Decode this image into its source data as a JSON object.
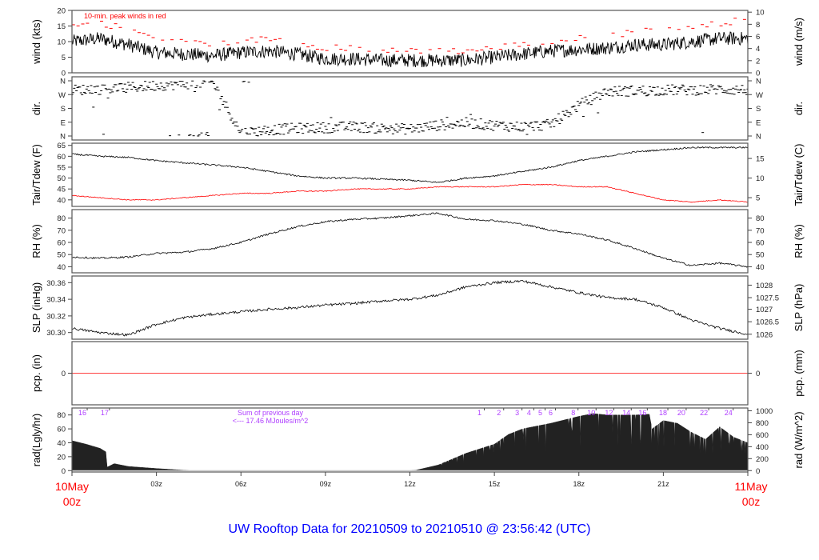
{
  "title": "UW Rooftop Data for 20210509  to  20210510 @ 23:56:42  (UTC)",
  "colors": {
    "title": "#0000ff",
    "peak": "#ff0000",
    "dewpoint": "#ff0000",
    "precip": "#ff0000",
    "date_label": "#ff0000",
    "rad_annotation": "#b040ff",
    "series": "#000000"
  },
  "x_axis": {
    "ticks": [
      {
        "hour": 3,
        "label": "03z"
      },
      {
        "hour": 6,
        "label": "06z"
      },
      {
        "hour": 9,
        "label": "09z"
      },
      {
        "hour": 12,
        "label": "12z"
      },
      {
        "hour": 15,
        "label": "15z"
      },
      {
        "hour": 18,
        "label": "18z"
      },
      {
        "hour": 21,
        "label": "21z"
      }
    ],
    "start_label": [
      "10May",
      "00z"
    ],
    "end_label": [
      "11May",
      "00z"
    ],
    "range_hours": [
      0,
      24
    ]
  },
  "chart_data": [
    {
      "type": "line",
      "id": "wind",
      "ylabel": "wind (kts)",
      "ylabel_right": "wind (m/s)",
      "ylim": [
        0,
        20
      ],
      "yticks": [
        0,
        5,
        10,
        15,
        20
      ],
      "yticks_right": [
        {
          "v": 0,
          "l": "0"
        },
        {
          "v": 3.89,
          "l": "2"
        },
        {
          "v": 7.78,
          "l": "4"
        },
        {
          "v": 11.66,
          "l": "6"
        },
        {
          "v": 15.55,
          "l": "8"
        },
        {
          "v": 19.44,
          "l": "10"
        }
      ],
      "annotation": "10-min. peak winds in red",
      "hours": [
        0,
        1,
        2,
        3,
        4,
        5,
        6,
        7,
        8,
        9,
        10,
        11,
        12,
        13,
        14,
        15,
        16,
        17,
        18,
        19,
        20,
        21,
        22,
        23,
        24
      ],
      "series": [
        {
          "values": [
            10,
            11,
            9,
            6.5,
            6,
            5.5,
            6.5,
            7,
            6,
            4.5,
            4.5,
            4,
            4,
            4,
            4,
            5,
            6,
            7,
            7.5,
            8,
            9,
            9,
            10,
            11,
            11
          ]
        },
        {
          "style": "peak",
          "values": [
            15,
            16,
            14,
            11,
            10,
            9,
            10,
            11,
            10,
            8,
            8,
            7,
            7,
            7,
            7,
            8,
            9,
            10,
            11,
            12,
            13,
            14,
            15,
            16,
            17
          ]
        }
      ]
    },
    {
      "type": "scatter",
      "id": "dir",
      "ylabel": "dir.",
      "ylim": [
        0,
        360
      ],
      "yticks": [
        {
          "v": 0,
          "l": "N"
        },
        {
          "v": 90,
          "l": "E"
        },
        {
          "v": 180,
          "l": "S"
        },
        {
          "v": 270,
          "l": "W"
        },
        {
          "v": 360,
          "l": "N"
        }
      ],
      "hours": [
        0,
        1,
        2,
        3,
        4,
        5,
        6,
        7,
        8,
        9,
        10,
        11,
        12,
        13,
        14,
        15,
        16,
        17,
        18,
        19,
        20,
        21,
        22,
        23,
        24
      ],
      "values": [
        300,
        305,
        315,
        330,
        340,
        350,
        20,
        40,
        50,
        55,
        60,
        50,
        45,
        70,
        85,
        70,
        60,
        75,
        200,
        290,
        295,
        300,
        300,
        305,
        300
      ]
    },
    {
      "type": "line",
      "id": "temp",
      "ylabel": "Tair/Tdew (F)",
      "ylabel_right": "Tair/Tdew (C)",
      "ylim": [
        37,
        66
      ],
      "yticks": [
        40,
        45,
        50,
        55,
        60,
        65
      ],
      "yticks_right": [
        {
          "v": 41,
          "l": "5"
        },
        {
          "v": 50,
          "l": "10"
        },
        {
          "v": 59,
          "l": "15"
        }
      ],
      "hours": [
        0,
        1,
        2,
        3,
        4,
        5,
        6,
        7,
        8,
        9,
        10,
        11,
        12,
        13,
        14,
        15,
        16,
        17,
        18,
        19,
        20,
        21,
        22,
        23,
        24
      ],
      "series": [
        {
          "name": "Tair",
          "values": [
            61,
            60,
            59.5,
            58,
            57,
            56,
            55,
            53,
            51,
            50,
            50,
            49.5,
            49,
            48,
            50,
            51,
            53,
            55,
            58,
            60,
            62,
            63,
            64,
            64,
            64
          ]
        },
        {
          "name": "Tdew",
          "style": "dew",
          "values": [
            42,
            41,
            40,
            40,
            41,
            42,
            43,
            43,
            44,
            44,
            45,
            45,
            45,
            46,
            46,
            46,
            47,
            47,
            46,
            46,
            43,
            40,
            39,
            40,
            39
          ]
        }
      ]
    },
    {
      "type": "line",
      "id": "rh",
      "ylabel": "RH (%)",
      "ylabel_right": "RH (%)",
      "ylim": [
        35,
        87
      ],
      "yticks": [
        40,
        50,
        60,
        70,
        80
      ],
      "yticks_right": [
        {
          "v": 40,
          "l": "40"
        },
        {
          "v": 50,
          "l": "50"
        },
        {
          "v": 60,
          "l": "60"
        },
        {
          "v": 70,
          "l": "70"
        },
        {
          "v": 80,
          "l": "80"
        }
      ],
      "hours": [
        0,
        1,
        2,
        3,
        4,
        5,
        6,
        7,
        8,
        9,
        10,
        11,
        12,
        13,
        14,
        15,
        16,
        17,
        18,
        19,
        20,
        21,
        22,
        23,
        24
      ],
      "series": [
        {
          "values": [
            48,
            47,
            48,
            51,
            52,
            55,
            60,
            67,
            73,
            77,
            79,
            80,
            82,
            84,
            79,
            78,
            75,
            70,
            67,
            62,
            55,
            47,
            41,
            43,
            40
          ]
        }
      ]
    },
    {
      "type": "line",
      "id": "slp",
      "ylabel": "SLP (inHg)",
      "ylabel_right": "SLP (hPa)",
      "ylim": [
        30.292,
        30.368
      ],
      "yticks": [
        30.3,
        30.32,
        30.34,
        30.36
      ],
      "yticks_right": [
        {
          "v": 30.298,
          "l": "1026"
        },
        {
          "v": 30.313,
          "l": "1026.5"
        },
        {
          "v": 30.328,
          "l": "1027"
        },
        {
          "v": 30.342,
          "l": "1027.5"
        },
        {
          "v": 30.357,
          "l": "1028"
        }
      ],
      "hours": [
        0,
        1,
        2,
        3,
        4,
        5,
        6,
        7,
        8,
        9,
        10,
        11,
        12,
        13,
        14,
        15,
        16,
        17,
        18,
        19,
        20,
        21,
        22,
        23,
        24
      ],
      "series": [
        {
          "values": [
            30.305,
            30.3,
            30.297,
            30.31,
            30.318,
            30.322,
            30.325,
            30.328,
            30.33,
            30.333,
            30.335,
            30.338,
            30.34,
            30.345,
            30.355,
            30.36,
            30.362,
            30.355,
            30.348,
            30.342,
            30.34,
            30.33,
            30.315,
            30.305,
            30.298
          ]
        }
      ]
    },
    {
      "type": "line",
      "id": "pcp",
      "ylabel": "pcp. (in)",
      "ylabel_right": "pcp. (mm)",
      "ylim": [
        -1,
        1
      ],
      "yticks": [
        0
      ],
      "yticks_right": [
        {
          "v": 0,
          "l": "0"
        }
      ],
      "hours": [
        0,
        24
      ],
      "series": [
        {
          "style": "precip",
          "values": [
            0,
            0
          ]
        }
      ]
    },
    {
      "type": "area",
      "id": "rad",
      "ylabel": "rad(Lgly/hr)",
      "ylabel_right": "rad (W/m^2)",
      "ylim": [
        -2,
        90
      ],
      "yticks": [
        0,
        20,
        40,
        60,
        80
      ],
      "yticks_right": [
        {
          "v": 0,
          "l": "0"
        },
        {
          "v": 17.2,
          "l": "200"
        },
        {
          "v": 34.4,
          "l": "400"
        },
        {
          "v": 51.6,
          "l": "600"
        },
        {
          "v": 68.8,
          "l": "800"
        },
        {
          "v": 86,
          "l": "1000"
        }
      ],
      "hours": [
        0,
        0.5,
        1,
        1.2,
        1.25,
        1.5,
        2,
        3,
        4,
        4.2,
        12,
        12.2,
        13,
        14,
        15,
        15.5,
        16,
        17,
        18,
        18.5,
        19,
        20,
        20.5,
        20.6,
        21,
        21.5,
        22,
        22.5,
        23,
        23.5,
        24
      ],
      "values": [
        43,
        38,
        32,
        27,
        5,
        10,
        6,
        3,
        0.5,
        0,
        0,
        0.5,
        8,
        25,
        38,
        52,
        60,
        68,
        78,
        82,
        80,
        80,
        81,
        60,
        72,
        68,
        55,
        45,
        63,
        48,
        40
      ],
      "annotation": [
        "Sum of previous day",
        "<--- 17.46 MJoules/m^2"
      ],
      "hour_marks": [
        {
          "l": "16",
          "h": 0.37
        },
        {
          "l": "17",
          "h": 1.16
        },
        {
          "l": "1",
          "h": 14.47
        },
        {
          "l": "2",
          "h": 15.16
        },
        {
          "l": "3",
          "h": 15.81
        },
        {
          "l": "4",
          "h": 16.23
        },
        {
          "l": "5",
          "h": 16.63
        },
        {
          "l": "6",
          "h": 17.0
        },
        {
          "l": "8",
          "h": 17.8
        },
        {
          "l": "10",
          "h": 18.44
        },
        {
          "l": "12",
          "h": 19.07
        },
        {
          "l": "14",
          "h": 19.69
        },
        {
          "l": "16",
          "h": 20.26
        },
        {
          "l": "18",
          "h": 20.99
        },
        {
          "l": "20",
          "h": 21.64
        },
        {
          "l": "22",
          "h": 22.44
        },
        {
          "l": "24",
          "h": 23.31
        }
      ]
    }
  ]
}
